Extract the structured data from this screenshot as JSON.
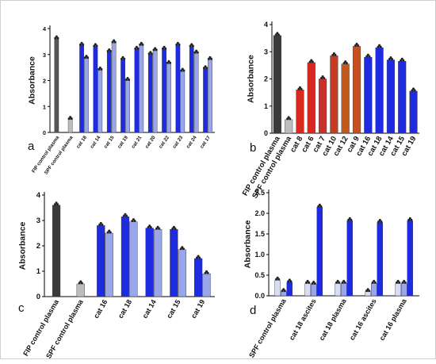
{
  "chart_data": [
    {
      "panel": "a",
      "type": "bar",
      "ylabel": "Absorbance",
      "ylim": [
        0,
        4
      ],
      "yticks": [
        0,
        1,
        2,
        3,
        4
      ],
      "categories": [
        "FIP control plasma",
        "SPF control plasma",
        "cat 18",
        "cat 14",
        "cat 15",
        "cat 19",
        "cat 21",
        "cat 20",
        "cat 22",
        "cat 23",
        "cat 24",
        "cat 17"
      ],
      "series": [
        {
          "color": "#1f2be0",
          "values": [
            3.6,
            0.5,
            3.35,
            3.3,
            3.1,
            2.8,
            3.2,
            3.0,
            3.2,
            3.35,
            3.3,
            2.45
          ]
        },
        {
          "color": "#9aa6ea",
          "values": [
            null,
            null,
            2.85,
            2.4,
            3.45,
            2.0,
            3.35,
            3.15,
            2.65,
            2.35,
            3.05,
            2.8
          ]
        }
      ],
      "bar_colors_single": {
        "FIP control plasma": "#555555",
        "SPF control plasma": "#bdbdbd"
      }
    },
    {
      "panel": "b",
      "type": "bar",
      "ylabel": "Absorbance",
      "ylim": [
        0,
        4
      ],
      "yticks": [
        0,
        1,
        2,
        3,
        4
      ],
      "categories": [
        "FIP control plasma",
        "SPF control plasma",
        "cat 8",
        "cat 6",
        "cat 7",
        "cat 10",
        "cat 12",
        "cat 9",
        "cat 16",
        "cat 18",
        "cat 14",
        "cat 15",
        "cat 19"
      ],
      "values": [
        3.6,
        0.5,
        1.6,
        2.6,
        2.0,
        2.85,
        2.55,
        3.2,
        2.8,
        3.15,
        2.7,
        2.65,
        1.55
      ],
      "colors": [
        "#3a3a3a",
        "#bdbdbd",
        "#d9281e",
        "#d9281e",
        "#c8322a",
        "#c83a22",
        "#c45a1a",
        "#c8501e",
        "#1f2be0",
        "#1f2be0",
        "#1f2be0",
        "#1f2be0",
        "#1f2be0"
      ]
    },
    {
      "panel": "c",
      "type": "bar",
      "ylabel": "Absorbance",
      "ylim": [
        0,
        4
      ],
      "yticks": [
        0,
        1,
        2,
        3,
        4
      ],
      "categories": [
        "FIP control plasma",
        "SPF control plasma",
        "cat 16",
        "cat 18",
        "cat 14",
        "cat 15",
        "cat 19"
      ],
      "series": [
        {
          "color": "#1f2be0",
          "values": [
            3.6,
            0.5,
            2.8,
            3.15,
            2.7,
            2.65,
            1.5
          ]
        },
        {
          "color": "#9aa6ea",
          "values": [
            null,
            null,
            2.5,
            2.95,
            2.65,
            1.85,
            0.9
          ]
        }
      ],
      "bar_colors_single": {
        "FIP control plasma": "#3a3a3a",
        "SPF control plasma": "#bdbdbd"
      }
    },
    {
      "panel": "d",
      "type": "bar",
      "ylabel": "Absorbance",
      "ylim": [
        0,
        2.5
      ],
      "yticks": [
        0.0,
        0.5,
        1.0,
        1.5,
        2.0,
        2.5
      ],
      "categories": [
        "SPF control plasma",
        "cat 18 ascites",
        "cat 18 plasma",
        "cat 16 ascites",
        "cat 16 plasma"
      ],
      "series": [
        {
          "color": "#d8dcf5",
          "values": [
            0.38,
            0.3,
            0.3,
            0.1,
            0.3
          ]
        },
        {
          "color": "#9aa6ea",
          "values": [
            0.1,
            0.28,
            0.3,
            0.3,
            0.3
          ]
        },
        {
          "color": "#1f2be0",
          "values": [
            0.33,
            2.15,
            1.82,
            1.78,
            1.82
          ]
        }
      ]
    }
  ]
}
